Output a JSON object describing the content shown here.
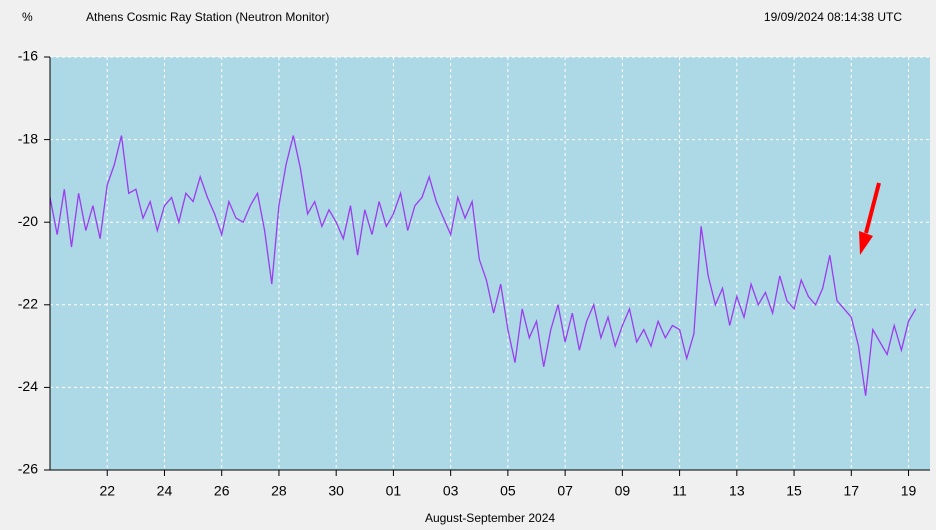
{
  "chart_data": {
    "type": "line",
    "title": "Athens Cosmic Ray Station (Neutron Monitor)",
    "subtitle": "19/09/2024 08:14:38 UTC",
    "y_label": "%",
    "x_label": "August-September 2024",
    "grid": true,
    "xlim": [
      20,
      50.75
    ],
    "xticks": [
      22,
      24,
      26,
      28,
      30,
      {
        "value": 32,
        "label": "01"
      },
      {
        "value": 34,
        "label": "03"
      },
      {
        "value": 36,
        "label": "05"
      },
      {
        "value": 38,
        "label": "07"
      },
      {
        "value": 40,
        "label": "09"
      },
      {
        "value": 42,
        "label": "11"
      },
      {
        "value": 44,
        "label": "13"
      },
      {
        "value": 46,
        "label": "15"
      },
      {
        "value": 48,
        "label": "17"
      },
      {
        "value": 50,
        "label": "19"
      }
    ],
    "ylim": [
      -26,
      -16
    ],
    "yticks": [
      -26,
      -24,
      -22,
      -20,
      -18,
      -16
    ],
    "x": [
      20,
      20.25,
      20.5,
      20.75,
      21,
      21.25,
      21.5,
      21.75,
      22,
      22.25,
      22.5,
      22.75,
      23,
      23.25,
      23.5,
      23.75,
      24,
      24.25,
      24.5,
      24.75,
      25,
      25.25,
      25.5,
      25.75,
      26,
      26.25,
      26.5,
      26.75,
      27,
      27.25,
      27.5,
      27.75,
      28,
      28.25,
      28.5,
      28.75,
      29,
      29.25,
      29.5,
      29.75,
      30,
      30.25,
      30.5,
      30.75,
      31,
      31.25,
      31.5,
      31.75,
      32,
      32.25,
      32.5,
      32.75,
      33,
      33.25,
      33.5,
      33.75,
      34,
      34.25,
      34.5,
      34.75,
      35,
      35.25,
      35.5,
      35.75,
      36,
      36.25,
      36.5,
      36.75,
      37,
      37.25,
      37.5,
      37.75,
      38,
      38.25,
      38.5,
      38.75,
      39,
      39.25,
      39.5,
      39.75,
      40,
      40.25,
      40.5,
      40.75,
      41,
      41.25,
      41.5,
      41.75,
      42,
      42.25,
      42.5,
      42.75,
      43,
      43.25,
      43.5,
      43.75,
      44,
      44.25,
      44.5,
      44.75,
      45,
      45.25,
      45.5,
      45.75,
      46,
      46.25,
      46.5,
      46.75,
      47,
      47.25,
      47.5,
      47.75,
      48,
      48.25,
      48.5,
      48.75,
      49,
      49.25,
      49.5,
      49.75,
      50,
      50.25
    ],
    "series": [
      {
        "color": "#9b3cf0",
        "values": [
          -19.4,
          -20.3,
          -19.2,
          -20.6,
          -19.3,
          -20.2,
          -19.6,
          -20.4,
          -19.1,
          -18.6,
          -17.9,
          -19.3,
          -19.2,
          -19.9,
          -19.5,
          -20.2,
          -19.6,
          -19.4,
          -20.0,
          -19.3,
          -19.5,
          -18.9,
          -19.4,
          -19.8,
          -20.3,
          -19.5,
          -19.9,
          -20.0,
          -19.6,
          -19.3,
          -20.2,
          -21.5,
          -19.6,
          -18.6,
          -17.9,
          -18.7,
          -19.8,
          -19.5,
          -20.1,
          -19.7,
          -20.0,
          -20.4,
          -19.6,
          -20.8,
          -19.7,
          -20.3,
          -19.5,
          -20.1,
          -19.8,
          -19.3,
          -20.2,
          -19.6,
          -19.4,
          -18.9,
          -19.5,
          -19.9,
          -20.3,
          -19.4,
          -19.9,
          -19.5,
          -20.9,
          -21.4,
          -22.2,
          -21.5,
          -22.6,
          -23.4,
          -22.1,
          -22.8,
          -22.4,
          -23.5,
          -22.6,
          -22.0,
          -22.9,
          -22.2,
          -23.1,
          -22.4,
          -22.0,
          -22.8,
          -22.3,
          -23.0,
          -22.5,
          -22.1,
          -22.9,
          -22.6,
          -23.0,
          -22.4,
          -22.8,
          -22.5,
          -22.6,
          -23.3,
          -22.7,
          -20.1,
          -21.3,
          -22.0,
          -21.6,
          -22.5,
          -21.8,
          -22.3,
          -21.5,
          -22.0,
          -21.7,
          -22.2,
          -21.3,
          -21.9,
          -22.1,
          -21.4,
          -21.8,
          -22.0,
          -21.6,
          -20.8,
          -21.9,
          -22.1,
          -22.3,
          -23.0,
          -24.2,
          -22.6,
          -22.9,
          -23.2,
          -22.5,
          -23.1,
          -22.4,
          -22.1
        ]
      }
    ]
  }
}
